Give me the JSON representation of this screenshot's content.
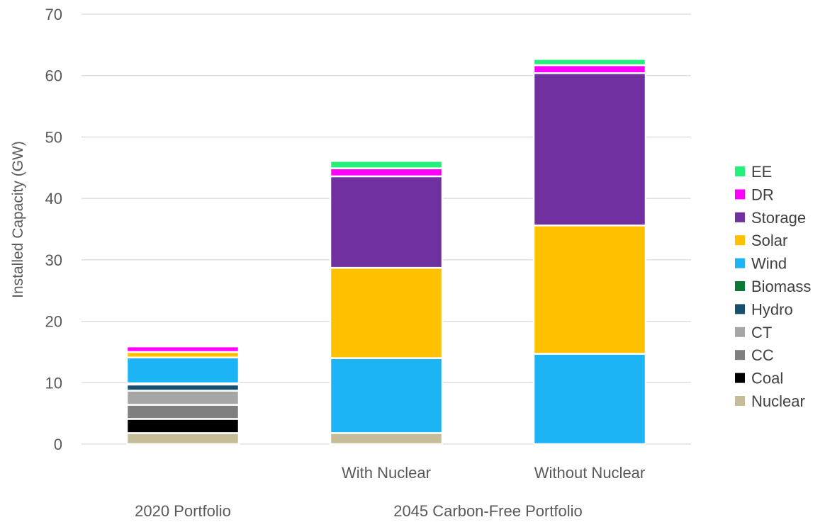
{
  "chart_data": {
    "type": "bar",
    "stacked": true,
    "title": "",
    "ylabel": "Installed Capacity (GW)",
    "xlabel": "",
    "ylim": [
      0,
      70
    ],
    "yticks": [
      0,
      10,
      20,
      30,
      40,
      50,
      60,
      70
    ],
    "grid": true,
    "legend_position": "right",
    "categories": [
      "2020 Portfolio",
      "With Nuclear",
      "Without Nuclear"
    ],
    "category_groups": [
      {
        "label": "2020 Portfolio",
        "categories": [
          "2020 Portfolio"
        ],
        "sublabels": false
      },
      {
        "label": "2045 Carbon-Free Portfolio",
        "categories": [
          "With Nuclear",
          "Without Nuclear"
        ],
        "sublabels": true
      }
    ],
    "series": [
      {
        "name": "Nuclear",
        "color": "#c4bd97",
        "values": [
          1.8,
          1.8,
          0
        ]
      },
      {
        "name": "Coal",
        "color": "#000000",
        "values": [
          2.3,
          0,
          0
        ]
      },
      {
        "name": "CC",
        "color": "#7f7f7f",
        "values": [
          2.3,
          0,
          0
        ]
      },
      {
        "name": "CT",
        "color": "#a6a6a6",
        "values": [
          2.3,
          0,
          0
        ]
      },
      {
        "name": "Hydro",
        "color": "#17506e",
        "values": [
          1.0,
          0,
          0
        ]
      },
      {
        "name": "Biomass",
        "color": "#0b7a34",
        "values": [
          0.2,
          0,
          0
        ]
      },
      {
        "name": "Wind",
        "color": "#1cb4f5",
        "values": [
          4.2,
          12.2,
          14.7
        ]
      },
      {
        "name": "Solar",
        "color": "#ffc000",
        "values": [
          0.9,
          14.7,
          20.9
        ]
      },
      {
        "name": "Storage",
        "color": "#7030a0",
        "values": [
          0,
          14.9,
          24.8
        ]
      },
      {
        "name": "DR",
        "color": "#ff00ff",
        "values": [
          0.9,
          1.3,
          1.3
        ]
      },
      {
        "name": "EE",
        "color": "#22f07a",
        "values": [
          0,
          1.2,
          1.0
        ]
      }
    ]
  }
}
